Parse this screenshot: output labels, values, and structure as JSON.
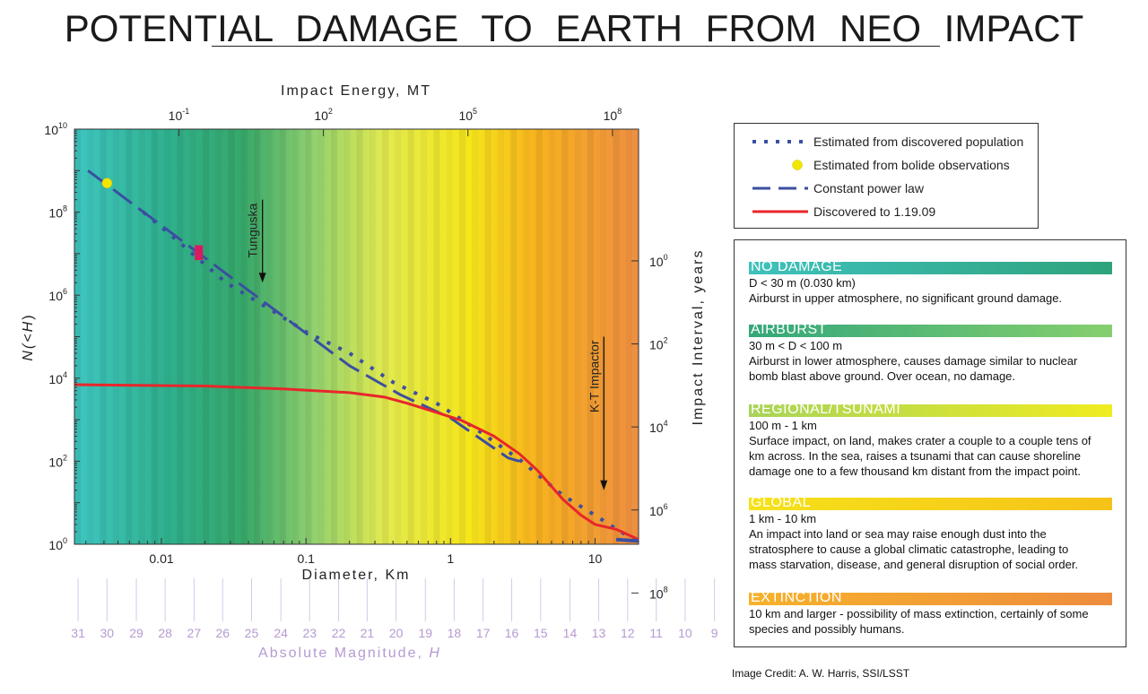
{
  "title": "POTENTIAL   DAMAGE   TO   EARTH   FROM   NEO IMPACT",
  "credit": "Image Credit:  A. W. Harris, SSI/LSST",
  "legend": [
    {
      "label": "Estimated from discovered population",
      "style": "dotted",
      "color": "#3b4fa0"
    },
    {
      "label": "Estimated from bolide observations",
      "style": "point",
      "color": "#f2e600"
    },
    {
      "label": "Constant power law",
      "style": "dashed",
      "color": "#3b4fa0"
    },
    {
      "label": "Discovered to 1.19.09",
      "style": "solid",
      "color": "#e8262b"
    }
  ],
  "categories": [
    {
      "name": "NO DAMAGE",
      "range": "D < 30 m (0.030 km)",
      "desc": [
        "Airburst in upper atmosphere, no significant ground damage."
      ],
      "color_from": "#3fc1bd",
      "color_to": "#2ea37c"
    },
    {
      "name": "AIRBURST",
      "range": "30 m < D < 100 m",
      "desc": [
        "Airburst in lower atmosphere, causes damage similar to nuclear",
        "bomb blast above ground.  Over ocean, no damage."
      ],
      "color_from": "#33a77a",
      "color_to": "#86cf6e"
    },
    {
      "name": "REGIONAL/TSUNAMI",
      "range": "100 m - 1 km",
      "desc": [
        "Surface impact, on land, makes crater a couple to a couple tens of",
        "km across. In the sea, raises a tsunami that can cause shoreline",
        "damage one to a few thousand km distant from the impact point."
      ],
      "color_from": "#a8d35a",
      "color_to": "#f0ec20"
    },
    {
      "name": "GLOBAL",
      "range": "1 km - 10 km",
      "desc": [
        "An impact into land or sea may raise enough dust into the",
        "stratosphere to cause a global climatic catastrophe, leading to",
        "mass starvation, disease, and general disruption of social order."
      ],
      "color_from": "#f5e21a",
      "color_to": "#f6c219"
    },
    {
      "name": "EXTINCTION",
      "range": "10 km and larger - possibility of mass extinction, certainly of some",
      "desc": [
        "species and possibly humans."
      ],
      "color_from": "#f6b22a",
      "color_to": "#ee8c3e"
    }
  ],
  "chart_data": {
    "type": "line",
    "xlabel": "Diameter, Km",
    "ylabel": "N(<H)",
    "top_xlabel": "Impact Energy, MT",
    "right_ylabel": "Impact Interval, years",
    "bottom2_label": "Absolute Magnitude, H",
    "x_scale": "log",
    "y_scale": "log",
    "xlim": [
      0.0025,
      20
    ],
    "ylim": [
      1,
      10000000000
    ],
    "x_ticks": [
      {
        "value": 0.01,
        "label": "0.01"
      },
      {
        "value": 0.1,
        "label": "0.1"
      },
      {
        "value": 1,
        "label": "1"
      },
      {
        "value": 10,
        "label": "10"
      }
    ],
    "y_ticks": [
      {
        "value": 1,
        "base": "10",
        "exp": "0"
      },
      {
        "value": 100,
        "base": "10",
        "exp": "2"
      },
      {
        "value": 10000,
        "base": "10",
        "exp": "4"
      },
      {
        "value": 1000000,
        "base": "10",
        "exp": "6"
      },
      {
        "value": 100000000,
        "base": "10",
        "exp": "8"
      },
      {
        "value": 10000000000,
        "base": "10",
        "exp": "10"
      }
    ],
    "top_ticks": [
      {
        "x": 0.0132,
        "base": "10",
        "exp": "-1"
      },
      {
        "x": 0.132,
        "base": "10",
        "exp": "2"
      },
      {
        "x": 1.32,
        "base": "10",
        "exp": "5"
      },
      {
        "x": 13.2,
        "base": "10",
        "exp": "8"
      }
    ],
    "right_ticks": [
      {
        "y": 6700000,
        "base": "10",
        "exp": "0"
      },
      {
        "y": 67000,
        "base": "10",
        "exp": "2"
      },
      {
        "y": 670,
        "base": "10",
        "exp": "4"
      },
      {
        "y": 6.7,
        "base": "10",
        "exp": "6"
      },
      {
        "y": 0.067,
        "base": "10",
        "exp": "8"
      }
    ],
    "magnitudes": [
      "31",
      "30",
      "29",
      "28",
      "27",
      "26",
      "25",
      "24",
      "23",
      "22",
      "21",
      "20",
      "19",
      "18",
      "17",
      "16",
      "15",
      "14",
      "13",
      "12",
      "11",
      "10",
      "9"
    ],
    "mag_positions": [
      0.00265,
      0.0042,
      0.0067,
      0.0106,
      0.0168,
      0.0265,
      0.042,
      0.067,
      0.106,
      0.168,
      0.265,
      0.42,
      0.67,
      1.06,
      1.68,
      2.65,
      4.2,
      6.7,
      10.6,
      16.8,
      26.5,
      42,
      67
    ],
    "series": [
      {
        "name": "Constant power law",
        "style": "dashed",
        "color": "#3b4fa0",
        "points": [
          [
            0.0031,
            1000000000
          ],
          [
            0.2,
            20000
          ],
          [
            0.45,
            4000
          ],
          [
            1.0,
            1100
          ],
          [
            2.5,
            120
          ],
          [
            3.0,
            100
          ]
        ]
      },
      {
        "name": "Estimated from discovered population",
        "style": "dotted",
        "color": "#3b4fa0",
        "points": [
          [
            0.0075,
            100000000
          ],
          [
            0.014,
            16000000
          ],
          [
            0.028,
            2000000
          ],
          [
            0.06,
            400000
          ],
          [
            0.1,
            130000
          ],
          [
            0.2,
            40000
          ],
          [
            0.4,
            8000
          ],
          [
            0.8,
            2500
          ],
          [
            1.5,
            600
          ],
          [
            3.0,
            110
          ],
          [
            6.0,
            15
          ],
          [
            10.0,
            5
          ],
          [
            15.0,
            2
          ],
          [
            20.0,
            1.2
          ]
        ]
      },
      {
        "name": "Discovered to 1.19.09",
        "style": "solid",
        "color": "#e8262b",
        "points": [
          [
            0.0025,
            7000
          ],
          [
            0.02,
            6500
          ],
          [
            0.07,
            5500
          ],
          [
            0.2,
            4500
          ],
          [
            0.35,
            3500
          ],
          [
            0.5,
            2500
          ],
          [
            0.8,
            1500
          ],
          [
            1.2,
            950
          ],
          [
            2.0,
            400
          ],
          [
            3.0,
            150
          ],
          [
            4.0,
            60
          ],
          [
            6.0,
            12
          ],
          [
            8.0,
            5
          ],
          [
            10.0,
            3
          ],
          [
            14.0,
            2.3
          ],
          [
            20.0,
            1.3
          ]
        ]
      },
      {
        "name": "Estimated from bolide observations",
        "style": "point",
        "color": "#f2e600",
        "points": [
          [
            0.0042,
            500000000
          ]
        ]
      }
    ],
    "annotations": [
      {
        "text": "Tunguska",
        "x": 0.05,
        "y_from": 200000000,
        "y_to": 2000000
      },
      {
        "text": "K-T Impactor",
        "x": 11.5,
        "y_from": 100000,
        "y_to": 20
      }
    ],
    "bolide_bar": {
      "x": 0.018,
      "y_from": 16000000,
      "y_to": 7000000,
      "color": "#d81b60"
    },
    "tail_segment": {
      "points": [
        [
          14,
          1.3
        ],
        [
          20,
          1.2
        ]
      ],
      "color": "#3b4fa0"
    }
  }
}
